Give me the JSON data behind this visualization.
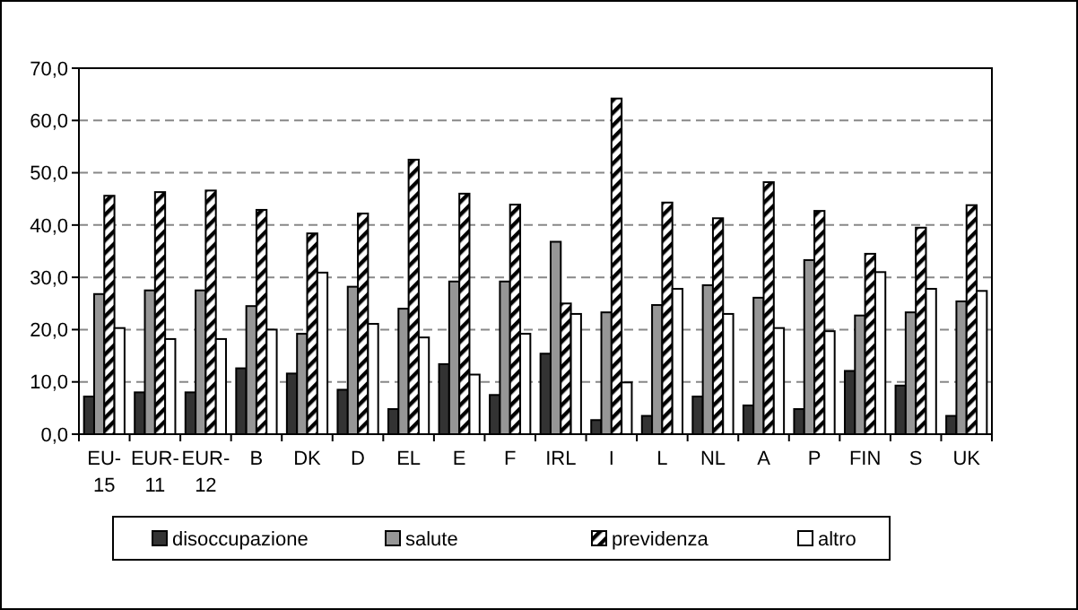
{
  "chart_data": {
    "type": "bar",
    "categories": [
      "EU-15",
      "EUR-11",
      "EUR-12",
      "B",
      "DK",
      "D",
      "EL",
      "E",
      "F",
      "IRL",
      "I",
      "L",
      "NL",
      "A",
      "P",
      "FIN",
      "S",
      "UK"
    ],
    "series": [
      {
        "name": "disoccupazione",
        "color": "#333333",
        "values": [
          7.2,
          8.0,
          8.0,
          12.6,
          11.6,
          8.5,
          4.8,
          13.4,
          7.5,
          15.4,
          2.7,
          3.5,
          7.2,
          5.5,
          4.8,
          12.1,
          9.3,
          3.5
        ]
      },
      {
        "name": "salute",
        "color": "#969696",
        "values": [
          26.8,
          27.5,
          27.5,
          24.5,
          19.2,
          28.2,
          24.0,
          29.2,
          29.2,
          36.8,
          23.3,
          24.7,
          28.5,
          26.1,
          33.3,
          22.7,
          23.3,
          25.4
        ]
      },
      {
        "name": "previdenza",
        "color": "#000000",
        "values": [
          45.6,
          46.3,
          46.6,
          42.9,
          38.4,
          42.2,
          52.5,
          46.0,
          43.9,
          25.0,
          64.2,
          44.3,
          41.3,
          48.2,
          42.7,
          34.5,
          39.5,
          43.8
        ]
      },
      {
        "name": "altro",
        "color": "#ffffff",
        "values": [
          20.3,
          18.2,
          18.2,
          20.0,
          30.9,
          21.1,
          18.5,
          11.4,
          19.2,
          23.0,
          9.9,
          27.8,
          23.0,
          20.3,
          19.7,
          31.0,
          27.8,
          27.4
        ]
      }
    ],
    "ylim": [
      0,
      70
    ],
    "yticks": [
      {
        "value": 0,
        "label": "0,0"
      },
      {
        "value": 10,
        "label": "10,0"
      },
      {
        "value": 20,
        "label": "20,0"
      },
      {
        "value": 30,
        "label": "30,0"
      },
      {
        "value": 40,
        "label": "40,0"
      },
      {
        "value": 50,
        "label": "50,0"
      },
      {
        "value": 60,
        "label": "60,0"
      },
      {
        "value": 70,
        "label": "70,0"
      }
    ],
    "grid": "y",
    "legend": "bottom"
  }
}
